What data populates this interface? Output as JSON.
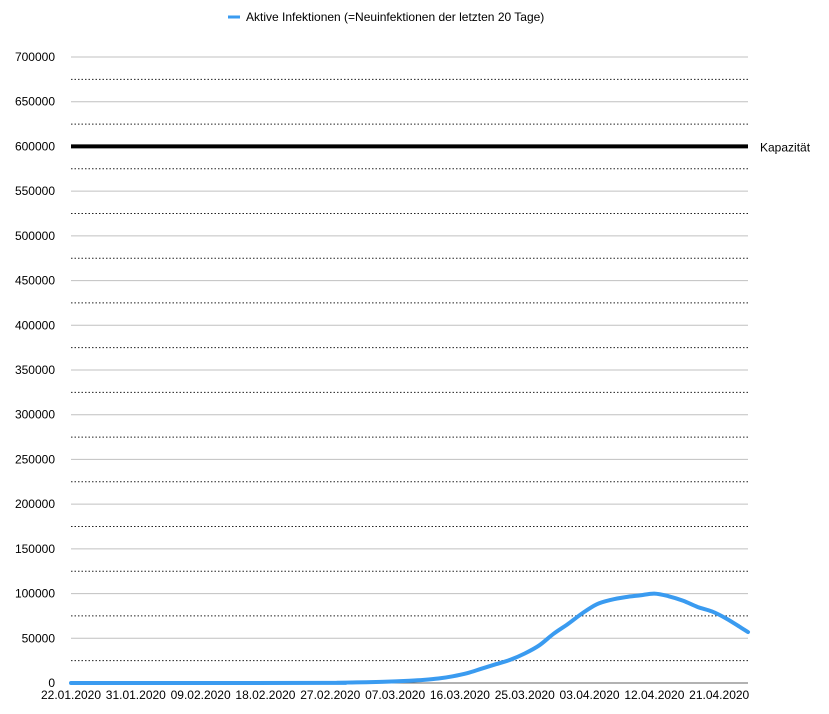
{
  "chart_data": {
    "type": "line",
    "title": "",
    "xlabel": "",
    "ylabel": "",
    "legend": {
      "placement": "top-center",
      "entries": [
        "Aktive Infektionen (=Neuinfektionen der letzten 20 Tage)"
      ]
    },
    "ylim": [
      0,
      700000
    ],
    "y_ticks": [
      "0",
      "50000",
      "100000",
      "150000",
      "200000",
      "250000",
      "300000",
      "350000",
      "400000",
      "450000",
      "500000",
      "550000",
      "600000",
      "650000",
      "700000"
    ],
    "x_ticks": [
      "22.01.2020",
      "31.01.2020",
      "09.02.2020",
      "18.02.2020",
      "27.02.2020",
      "07.03.2020",
      "16.03.2020",
      "25.03.2020",
      "03.04.2020",
      "12.04.2020",
      "21.04.2020"
    ],
    "x_range": [
      "22.01.2020",
      "25.04.2020"
    ],
    "grid": {
      "major": true,
      "minor_dotted": true
    },
    "series": [
      {
        "name": "Aktive Infektionen (=Neuinfektionen der letzten 20 Tage)",
        "color": "#3a9bf0",
        "x": [
          "22.01.2020",
          "26.02.2020",
          "28.02.2020",
          "01.03.2020",
          "03.03.2020",
          "05.03.2020",
          "07.03.2020",
          "09.03.2020",
          "11.03.2020",
          "13.03.2020",
          "15.03.2020",
          "17.03.2020",
          "19.03.2020",
          "21.03.2020",
          "23.03.2020",
          "25.03.2020",
          "27.03.2020",
          "29.03.2020",
          "31.03.2020",
          "02.04.2020",
          "04.04.2020",
          "06.04.2020",
          "08.04.2020",
          "10.04.2020",
          "12.04.2020",
          "14.04.2020",
          "16.04.2020",
          "18.04.2020",
          "20.04.2020",
          "22.04.2020",
          "24.04.2020",
          "25.04.2020"
        ],
        "values": [
          0,
          100,
          300,
          600,
          900,
          1300,
          1800,
          2500,
          3500,
          5000,
          7500,
          11000,
          16000,
          21000,
          26000,
          33000,
          42000,
          55000,
          66000,
          78000,
          88000,
          93000,
          96000,
          98000,
          100000,
          97000,
          92000,
          85000,
          80000,
          72000,
          62000,
          57000
        ]
      },
      {
        "name": "Kapazität",
        "color": "#000000",
        "x": [
          "22.01.2020",
          "25.04.2020"
        ],
        "values": [
          600000,
          600000
        ]
      }
    ]
  }
}
